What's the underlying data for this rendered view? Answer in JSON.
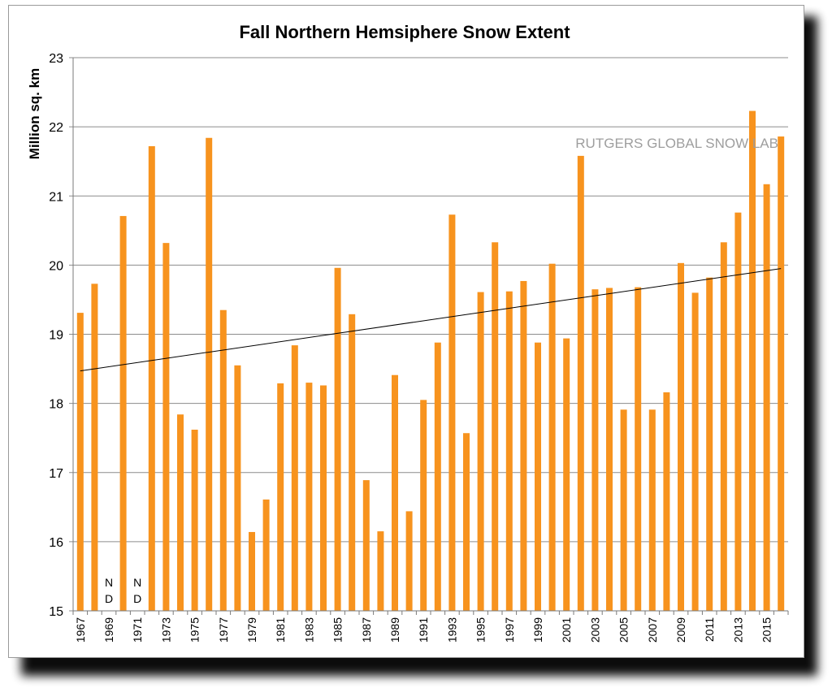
{
  "chart_data": {
    "type": "bar",
    "title": "Fall Northern Hemsiphere Snow Extent",
    "ylabel": "Million sq. km",
    "xlabel": "",
    "ylim": [
      15,
      23
    ],
    "yticks": [
      15,
      16,
      17,
      18,
      19,
      20,
      21,
      22,
      23
    ],
    "grid": true,
    "bar_color": "#F7931E",
    "trendline": {
      "start": 18.47,
      "end": 19.95,
      "color": "#000000"
    },
    "watermark": "RUTGERS GLOBAL SNOW LAB",
    "missing_label": [
      "N",
      "D"
    ],
    "categories": [
      "1967",
      "1968",
      "1969",
      "1970",
      "1971",
      "1972",
      "1973",
      "1974",
      "1975",
      "1976",
      "1977",
      "1978",
      "1979",
      "1980",
      "1981",
      "1982",
      "1983",
      "1984",
      "1985",
      "1986",
      "1987",
      "1988",
      "1989",
      "1990",
      "1991",
      "1992",
      "1993",
      "1994",
      "1995",
      "1996",
      "1997",
      "1998",
      "1999",
      "2000",
      "2001",
      "2002",
      "2003",
      "2004",
      "2005",
      "2006",
      "2007",
      "2008",
      "2009",
      "2010",
      "2011",
      "2012",
      "2013",
      "2014",
      "2015",
      "2016"
    ],
    "tick_labels": [
      "1967",
      "1969",
      "1971",
      "1973",
      "1975",
      "1977",
      "1979",
      "1981",
      "1983",
      "1985",
      "1987",
      "1989",
      "1991",
      "1993",
      "1995",
      "1997",
      "1999",
      "2001",
      "2003",
      "2005",
      "2007",
      "2009",
      "2011",
      "2013",
      "2015"
    ],
    "values": [
      19.31,
      19.73,
      null,
      20.71,
      null,
      21.72,
      20.32,
      17.84,
      17.62,
      21.84,
      19.35,
      18.55,
      16.14,
      16.61,
      18.29,
      18.84,
      18.3,
      18.26,
      19.96,
      19.29,
      16.89,
      16.15,
      18.41,
      16.44,
      18.05,
      18.88,
      20.73,
      17.57,
      19.61,
      20.33,
      19.62,
      19.77,
      18.88,
      20.02,
      18.94,
      21.58,
      19.65,
      19.67,
      17.91,
      19.68,
      17.91,
      18.16,
      20.03,
      19.6,
      19.82,
      20.33,
      20.76,
      22.23,
      21.17,
      21.86
    ]
  }
}
